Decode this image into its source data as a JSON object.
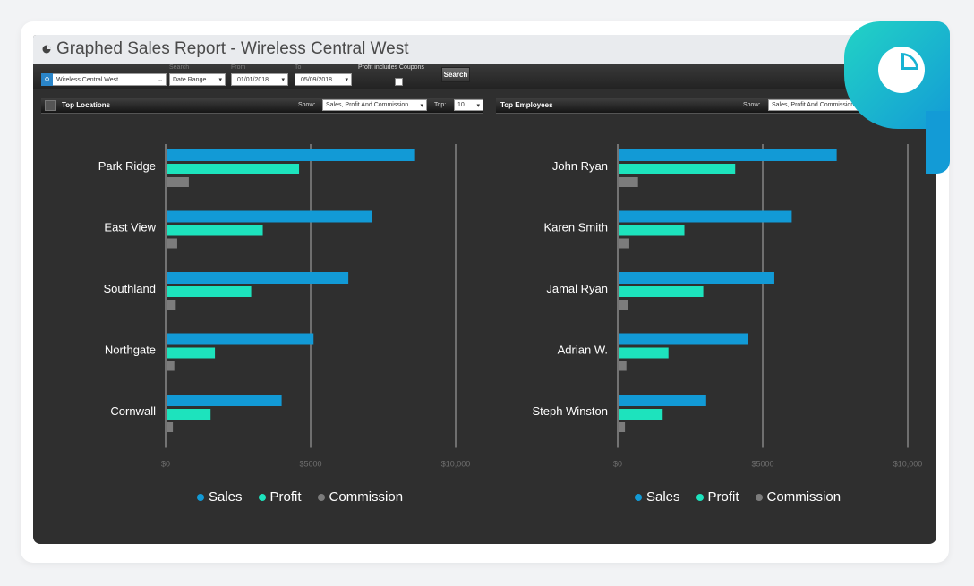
{
  "window": {
    "title": "Graphed Sales Report - Wireless Central West"
  },
  "filters": {
    "store_value": "Wireless Central West",
    "search_label": "Search",
    "search_value": "Date Range",
    "from_label": "From",
    "from_value": "01/01/2018",
    "to_label": "To",
    "to_value": "05/09/2018",
    "coupons_label": "Profit includes Coupons",
    "search_button": "Search"
  },
  "left_panel": {
    "title": "Top Locations",
    "show_label": "Show:",
    "show_value": "Sales, Profit And Commission",
    "top_label": "Top:",
    "top_value": "10"
  },
  "right_panel": {
    "title": "Top Employees",
    "show_label": "Show:",
    "show_value": "Sales, Profit And Commission"
  },
  "colors": {
    "sales": "#129ad6",
    "profit": "#1de3bd",
    "commission": "#7c7c7c",
    "badge": "#139bd6"
  },
  "chart_data": [
    {
      "type": "bar",
      "orientation": "horizontal",
      "categories": [
        "Park Ridge",
        "East View",
        "Southland",
        "Northgate",
        "Cornwall"
      ],
      "series": [
        {
          "name": "Sales",
          "values": [
            8600,
            7100,
            6300,
            5100,
            4000
          ]
        },
        {
          "name": "Profit",
          "values": [
            4600,
            3350,
            2950,
            1700,
            1550
          ]
        },
        {
          "name": "Commission",
          "values": [
            800,
            400,
            350,
            300,
            250
          ]
        }
      ],
      "xticks": [
        "$0",
        "$5000",
        "$10,000"
      ],
      "xlim": [
        0,
        10000
      ],
      "grid": true,
      "legend": "bottom-center"
    },
    {
      "type": "bar",
      "orientation": "horizontal",
      "categories": [
        "John Ryan",
        "Karen Smith",
        "Jamal Ryan",
        "Adrian W.",
        "Steph Winston"
      ],
      "series": [
        {
          "name": "Sales",
          "values": [
            7550,
            6000,
            5400,
            4500,
            3050
          ]
        },
        {
          "name": "Profit",
          "values": [
            4050,
            2300,
            2950,
            1750,
            1550
          ]
        },
        {
          "name": "Commission",
          "values": [
            700,
            400,
            350,
            300,
            250
          ]
        }
      ],
      "xticks": [
        "$0",
        "$5000",
        "$10,000"
      ],
      "xlim": [
        0,
        10000
      ],
      "grid": true,
      "legend": "bottom-center"
    }
  ]
}
